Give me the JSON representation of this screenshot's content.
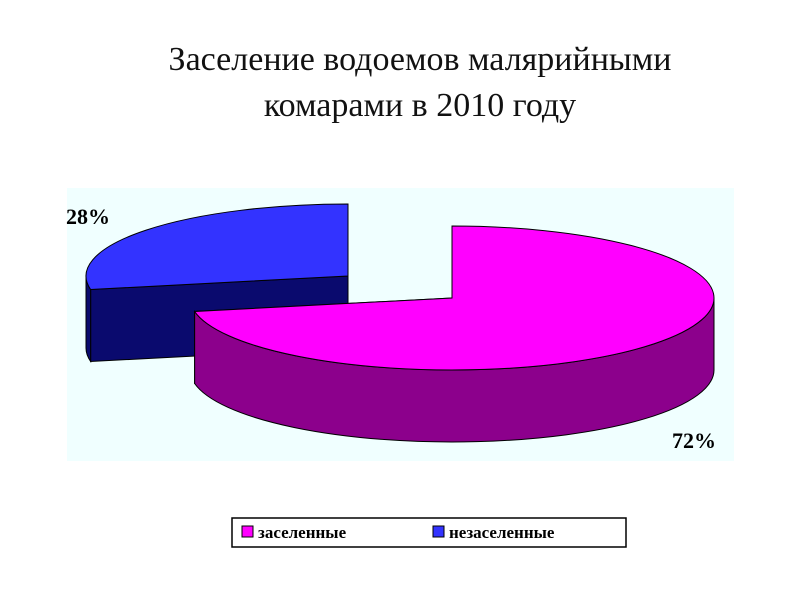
{
  "chart_data": {
    "type": "pie",
    "title_lines": [
      "Заселение водоемов малярийными",
      "комарами в 2010 году"
    ],
    "categories": [
      "заселенные",
      "незаселенные"
    ],
    "values": [
      72,
      28
    ],
    "labels": [
      "72%",
      "28%"
    ],
    "colors": {
      "заселенные": {
        "top": "#FF00FF",
        "side": "#8C008C"
      },
      "незаселенные": {
        "top": "#3333FF",
        "side": "#0A0A6E"
      }
    },
    "plot_background": "#F0FFFF",
    "legend_position": "bottom",
    "style": "3d-exploded"
  }
}
